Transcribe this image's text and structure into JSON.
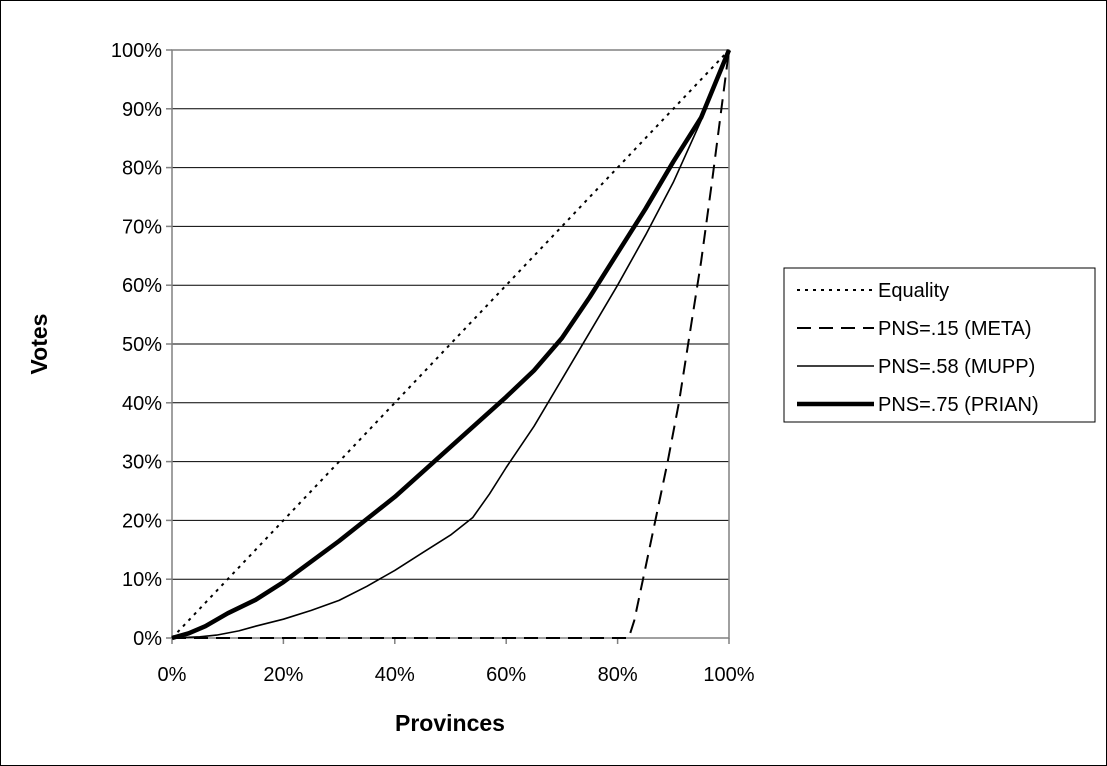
{
  "chart_data": {
    "type": "line",
    "title": "",
    "xlabel": "Provinces",
    "ylabel": "Votes",
    "xlim": [
      0,
      100
    ],
    "ylim": [
      0,
      100
    ],
    "x_ticks": [
      "0%",
      "20%",
      "40%",
      "60%",
      "80%",
      "100%"
    ],
    "y_ticks": [
      "0%",
      "10%",
      "20%",
      "30%",
      "40%",
      "50%",
      "60%",
      "70%",
      "80%",
      "90%",
      "100%"
    ],
    "grid": "horizontal",
    "legend_position": "right",
    "series": [
      {
        "name": "Equality",
        "style": "dotted",
        "x": [
          0,
          100
        ],
        "y": [
          0,
          100
        ]
      },
      {
        "name": "PNS=.15 (META)",
        "style": "dashed",
        "x": [
          0,
          82,
          83,
          85,
          87,
          89,
          91,
          93,
          95,
          97,
          100
        ],
        "y": [
          0,
          0,
          3,
          12,
          21,
          30,
          40,
          52,
          64,
          78,
          100
        ]
      },
      {
        "name": "PNS=.58 (MUPP)",
        "style": "solid-thin",
        "x": [
          0,
          5,
          8,
          12,
          15,
          20,
          25,
          30,
          35,
          40,
          45,
          50,
          54,
          57,
          60,
          65,
          70,
          75,
          80,
          85,
          90,
          95,
          100
        ],
        "y": [
          0,
          0.2,
          0.5,
          1.2,
          2,
          3.2,
          4.7,
          6.4,
          8.8,
          11.5,
          14.5,
          17.5,
          20.5,
          24.5,
          29,
          36,
          44,
          52,
          60,
          68.5,
          77.5,
          88,
          100
        ]
      },
      {
        "name": "PNS=.75 (PRIAN)",
        "style": "solid-thick",
        "x": [
          0,
          3,
          6,
          10,
          15,
          20,
          30,
          40,
          50,
          60,
          65,
          70,
          75,
          80,
          85,
          90,
          95,
          100
        ],
        "y": [
          0,
          0.8,
          2,
          4.2,
          6.5,
          9.5,
          16.5,
          24,
          32.5,
          41,
          45.5,
          51,
          58,
          65.5,
          73,
          81,
          88.5,
          100
        ]
      }
    ]
  }
}
